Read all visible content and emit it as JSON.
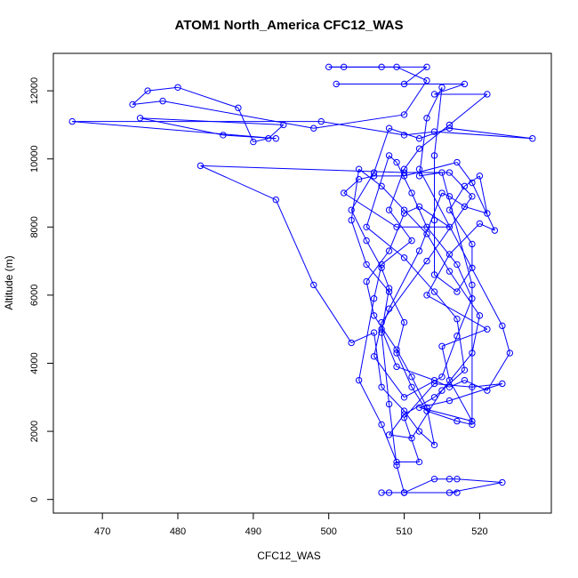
{
  "chart_data": {
    "type": "line",
    "title": "ATOM1 North_America CFC12_WAS",
    "xlabel": "CFC12_WAS",
    "ylabel": "Altitude (m)",
    "xlim": [
      463.5,
      529.5
    ],
    "ylim": [
      -400,
      13100
    ],
    "x_ticks": [
      470,
      480,
      490,
      500,
      510,
      520
    ],
    "y_ticks": [
      0,
      2000,
      4000,
      6000,
      8000,
      10000,
      12000
    ],
    "grid": false,
    "legend": "none",
    "color": "#0000ff",
    "marker": "open-circle",
    "series": [
      {
        "values": [
          [
            510,
            200
          ],
          [
            507,
            200
          ],
          [
            508,
            200
          ],
          [
            510,
            200
          ],
          [
            514,
            600
          ],
          [
            516,
            600
          ],
          [
            517,
            600
          ],
          [
            523,
            500
          ],
          [
            516,
            200
          ],
          [
            517,
            200
          ],
          [
            510,
            200
          ],
          [
            509,
            1000
          ],
          [
            508,
            2800
          ],
          [
            507,
            4900
          ],
          [
            508,
            6200
          ],
          [
            507,
            6800
          ],
          [
            505,
            7600
          ],
          [
            503,
            8500
          ],
          [
            506,
            9600
          ],
          [
            508,
            10900
          ],
          [
            512,
            10600
          ],
          [
            516,
            10900
          ],
          [
            527,
            10600
          ],
          [
            514,
            10800
          ],
          [
            510,
            10700
          ],
          [
            499,
            11100
          ],
          [
            466,
            11100
          ],
          [
            493,
            10600
          ],
          [
            486,
            10700
          ],
          [
            475,
            11200
          ],
          [
            494,
            11000
          ],
          [
            492,
            10600
          ],
          [
            490,
            10500
          ],
          [
            488,
            11500
          ],
          [
            480,
            12100
          ],
          [
            476,
            12000
          ],
          [
            474,
            11600
          ],
          [
            478,
            11700
          ],
          [
            498,
            10900
          ],
          [
            510,
            11300
          ],
          [
            513,
            12300
          ],
          [
            509,
            12700
          ],
          [
            502,
            12700
          ],
          [
            500,
            12700
          ],
          [
            507,
            12700
          ],
          [
            513,
            12700
          ],
          [
            510,
            12200
          ],
          [
            501,
            12200
          ],
          [
            518,
            12200
          ],
          [
            514,
            11900
          ],
          [
            521,
            11900
          ],
          [
            516,
            11000
          ],
          [
            512,
            10300
          ],
          [
            510,
            9700
          ],
          [
            508,
            8500
          ],
          [
            511,
            7600
          ],
          [
            507,
            6900
          ],
          [
            506,
            5900
          ],
          [
            504,
            3500
          ],
          [
            507,
            2200
          ],
          [
            509,
            1100
          ],
          [
            512,
            1100
          ],
          [
            510,
            2400
          ],
          [
            514,
            3400
          ],
          [
            519,
            3300
          ],
          [
            523,
            3400
          ],
          [
            516,
            2900
          ],
          [
            512,
            2700
          ],
          [
            519,
            2300
          ],
          [
            516,
            3500
          ],
          [
            515,
            4500
          ],
          [
            521,
            5000
          ],
          [
            513,
            6000
          ],
          [
            516,
            7200
          ],
          [
            520,
            8100
          ],
          [
            522,
            7900
          ],
          [
            519,
            9300
          ],
          [
            517,
            9900
          ],
          [
            510,
            9500
          ],
          [
            506,
            9500
          ],
          [
            504,
            9400
          ],
          [
            502,
            9000
          ],
          [
            509,
            8000
          ],
          [
            516,
            8000
          ],
          [
            512,
            8600
          ],
          [
            510,
            8400
          ],
          [
            508,
            7300
          ],
          [
            505,
            6400
          ],
          [
            506,
            5400
          ],
          [
            509,
            4400
          ],
          [
            511,
            3600
          ],
          [
            513,
            2700
          ],
          [
            514,
            1600
          ],
          [
            512,
            2000
          ],
          [
            510,
            2600
          ],
          [
            507,
            3300
          ],
          [
            506,
            4900
          ],
          [
            503,
            4600
          ],
          [
            498,
            6300
          ],
          [
            493,
            8800
          ],
          [
            483,
            9800
          ],
          [
            510,
            9600
          ],
          [
            516,
            9600
          ],
          [
            519,
            8900
          ],
          [
            513,
            7000
          ],
          [
            507,
            5200
          ],
          [
            506,
            4200
          ],
          [
            510,
            3000
          ],
          [
            515,
            3600
          ],
          [
            517,
            4800
          ],
          [
            519,
            5900
          ],
          [
            517,
            6900
          ],
          [
            513,
            8000
          ],
          [
            511,
            9000
          ],
          [
            509,
            9900
          ],
          [
            508,
            10100
          ],
          [
            505,
            8000
          ],
          [
            510,
            7100
          ],
          [
            514,
            6100
          ],
          [
            517,
            5300
          ],
          [
            518,
            3800
          ],
          [
            514,
            3000
          ],
          [
            510,
            2500
          ],
          [
            508,
            1900
          ],
          [
            511,
            1800
          ],
          [
            515,
            3200
          ],
          [
            519,
            4300
          ],
          [
            520,
            5400
          ],
          [
            516,
            6700
          ],
          [
            513,
            7800
          ],
          [
            510,
            8500
          ],
          [
            507,
            9200
          ],
          [
            504,
            9700
          ],
          [
            503,
            8200
          ],
          [
            505,
            6900
          ],
          [
            508,
            6100
          ],
          [
            510,
            5200
          ],
          [
            509,
            4300
          ],
          [
            511,
            3300
          ],
          [
            513,
            2600
          ],
          [
            517,
            2300
          ],
          [
            519,
            2200
          ],
          [
            519,
            6300
          ],
          [
            515,
            9600
          ],
          [
            512,
            9500
          ],
          [
            513,
            11200
          ],
          [
            515,
            12100
          ],
          [
            514,
            10100
          ],
          [
            514,
            8200
          ],
          [
            514,
            6600
          ],
          [
            517,
            6100
          ],
          [
            519,
            6800
          ],
          [
            519,
            7500
          ],
          [
            516,
            8500
          ],
          [
            518,
            9200
          ],
          [
            520,
            9500
          ],
          [
            521,
            8400
          ],
          [
            518,
            8600
          ],
          [
            516,
            8900
          ],
          [
            515,
            9000
          ],
          [
            512,
            7300
          ],
          [
            508,
            5600
          ],
          [
            507,
            5000
          ],
          [
            509,
            3900
          ],
          [
            514,
            3500
          ],
          [
            516,
            3300
          ],
          [
            518,
            3500
          ],
          [
            521,
            3200
          ],
          [
            524,
            4300
          ],
          [
            523,
            5100
          ],
          [
            512,
            9700
          ]
        ]
      }
    ]
  }
}
